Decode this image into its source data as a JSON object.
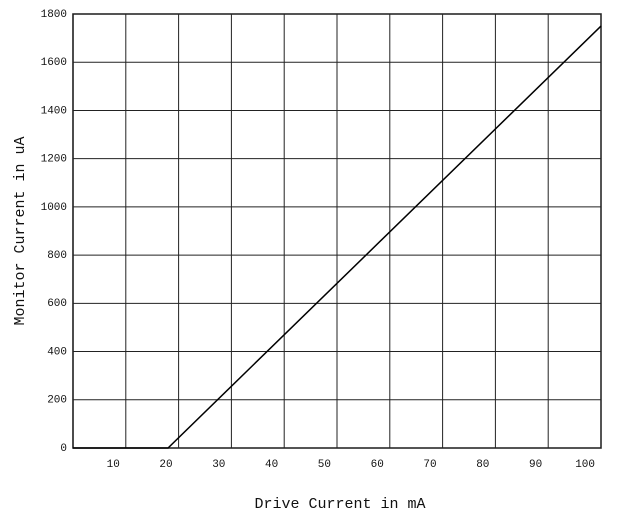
{
  "chart_data": {
    "type": "line",
    "xlabel": "Drive Current in mA",
    "ylabel": "Monitor Current in uA",
    "x": [
      0,
      18,
      100
    ],
    "series": [
      {
        "values": [
          0,
          0,
          1750
        ],
        "color": "#000000"
      }
    ],
    "xlim": [
      0,
      100
    ],
    "xticks": [
      10,
      20,
      30,
      40,
      50,
      60,
      70,
      80,
      90,
      100
    ],
    "ylim": [
      0,
      1800
    ],
    "yticks": [
      0,
      200,
      400,
      600,
      800,
      1000,
      1200,
      1400,
      1600,
      1800
    ],
    "grid": true
  }
}
